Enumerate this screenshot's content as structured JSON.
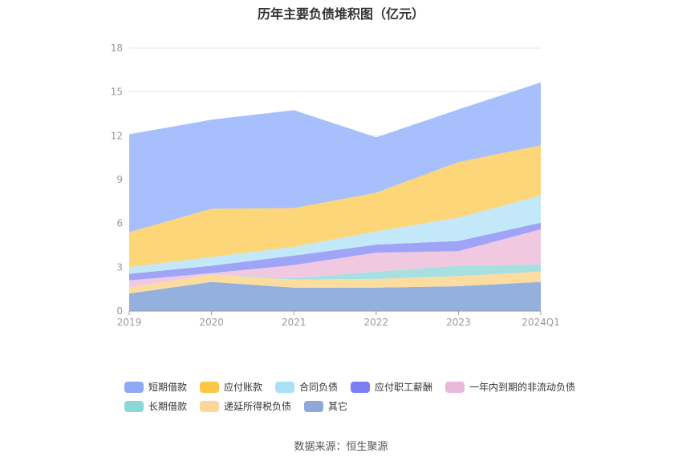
{
  "chart_data": {
    "type": "area",
    "stacked": true,
    "title": "历年主要负债堆积图（亿元）",
    "categories": [
      "2019",
      "2020",
      "2021",
      "2022",
      "2023",
      "2024Q1"
    ],
    "ylim": [
      0,
      18
    ],
    "yticks": [
      "0",
      "3",
      "6",
      "9",
      "12",
      "15",
      "18"
    ],
    "grid": true,
    "legend_position": "bottom",
    "series": [
      {
        "name": "其它",
        "color": "#94b0dc",
        "values": [
          1.2,
          2.0,
          1.6,
          1.6,
          1.7,
          2.0
        ]
      },
      {
        "name": "递延所得税负债",
        "color": "#fddca0",
        "values": [
          0.4,
          0.5,
          0.55,
          0.6,
          0.7,
          0.7
        ]
      },
      {
        "name": "长期借款",
        "color": "#a6e0e0",
        "values": [
          0.0,
          0.0,
          0.1,
          0.5,
          0.7,
          0.5
        ]
      },
      {
        "name": "一年内到期的非流动负债",
        "color": "#f0c8e0",
        "values": [
          0.5,
          0.1,
          0.9,
          1.3,
          1.0,
          2.4
        ]
      },
      {
        "name": "应付职工薪酬",
        "color": "#a0a4f6",
        "values": [
          0.45,
          0.5,
          0.65,
          0.55,
          0.7,
          0.45
        ]
      },
      {
        "name": "合同负债",
        "color": "#c2e8fa",
        "values": [
          0.45,
          0.6,
          0.6,
          0.9,
          1.6,
          1.85
        ]
      },
      {
        "name": "应付账款",
        "color": "#fdd67a",
        "values": [
          2.4,
          3.3,
          2.65,
          2.65,
          3.8,
          3.45
        ]
      },
      {
        "name": "短期借款",
        "color": "#a7bffc",
        "values": [
          6.7,
          6.1,
          6.7,
          3.8,
          3.6,
          4.3
        ]
      }
    ]
  },
  "legend": [
    {
      "label": "短期借款",
      "color": "#8fa9f5"
    },
    {
      "label": "应付账款",
      "color": "#fbc745"
    },
    {
      "label": "合同负债",
      "color": "#a8e0f8"
    },
    {
      "label": "应付职工薪酬",
      "color": "#7b7ef0"
    },
    {
      "label": "一年内到期的非流动负债",
      "color": "#eab8dc"
    },
    {
      "label": "长期借款",
      "color": "#8ad8d8"
    },
    {
      "label": "递延所得税负债",
      "color": "#fdd79a"
    },
    {
      "label": "其它",
      "color": "#8ea8d8"
    }
  ],
  "source": "数据来源：恒生聚源"
}
